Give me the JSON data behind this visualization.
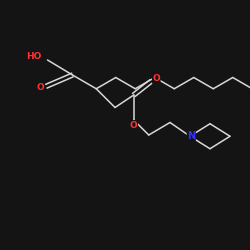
{
  "background_color": "#141414",
  "bond_color": "#d8d8d8",
  "atom_colors": {
    "O": "#ff3333",
    "N": "#3333ff",
    "C": "#d8d8d8"
  },
  "font_size": 6.5,
  "bond_width": 1.1
}
